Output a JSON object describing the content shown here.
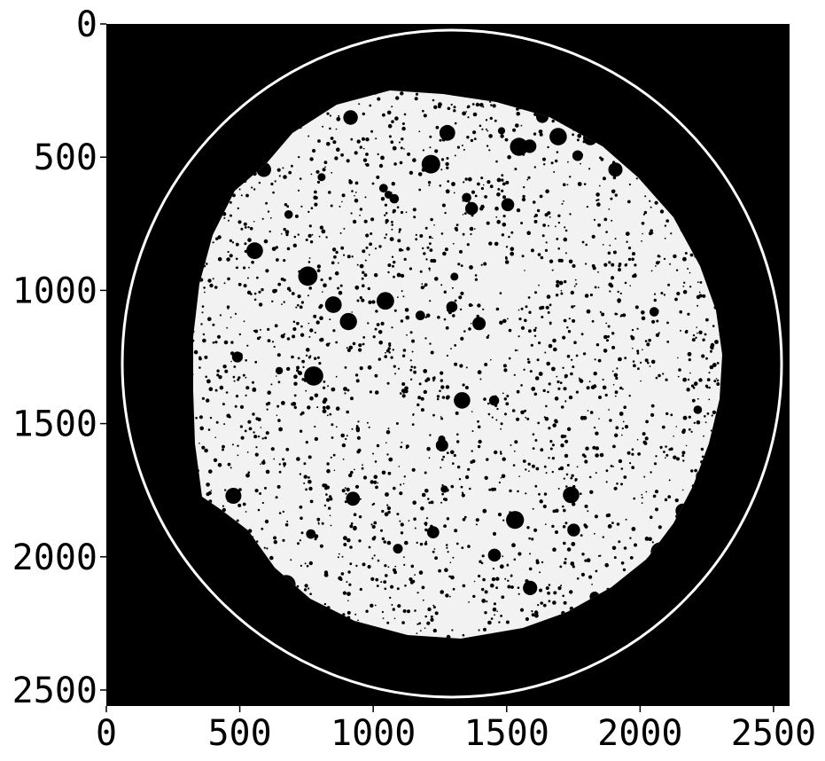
{
  "image": {
    "subject": "binary thresholded cross-section of packed circular grains",
    "background_color": "#000000",
    "foreground_color": "#ffffff"
  },
  "axes": {
    "x": {
      "range": [
        0,
        2560
      ],
      "ticks": [
        0,
        500,
        1000,
        1500,
        2000,
        2500
      ],
      "tick_labels": [
        "0",
        "500",
        "1000",
        "1500",
        "2000",
        "2500"
      ]
    },
    "y": {
      "range": [
        0,
        2560
      ],
      "inverted": true,
      "ticks": [
        0,
        500,
        1000,
        1500,
        2000,
        2500
      ],
      "tick_labels": [
        "0",
        "500",
        "1000",
        "1500",
        "2000",
        "2500"
      ]
    }
  }
}
